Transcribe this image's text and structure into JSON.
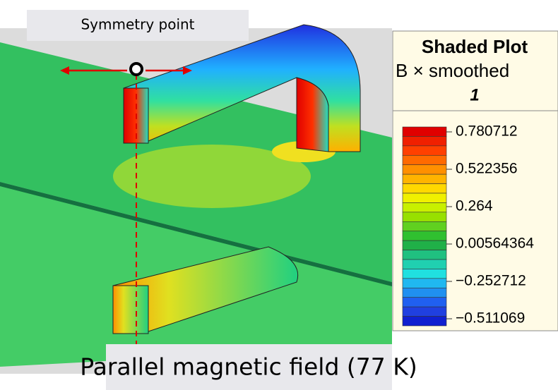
{
  "annotation": "Symmetry point",
  "legend": {
    "title": "Shaded Plot",
    "quantity": "B × smoothed",
    "frame": "1",
    "ticks": [
      "0.780712",
      "0.522356",
      "0.264",
      "0.00564364",
      "−0.252712",
      "−0.511069"
    ]
  },
  "caption": "Parallel magnetic field (77 K)"
}
